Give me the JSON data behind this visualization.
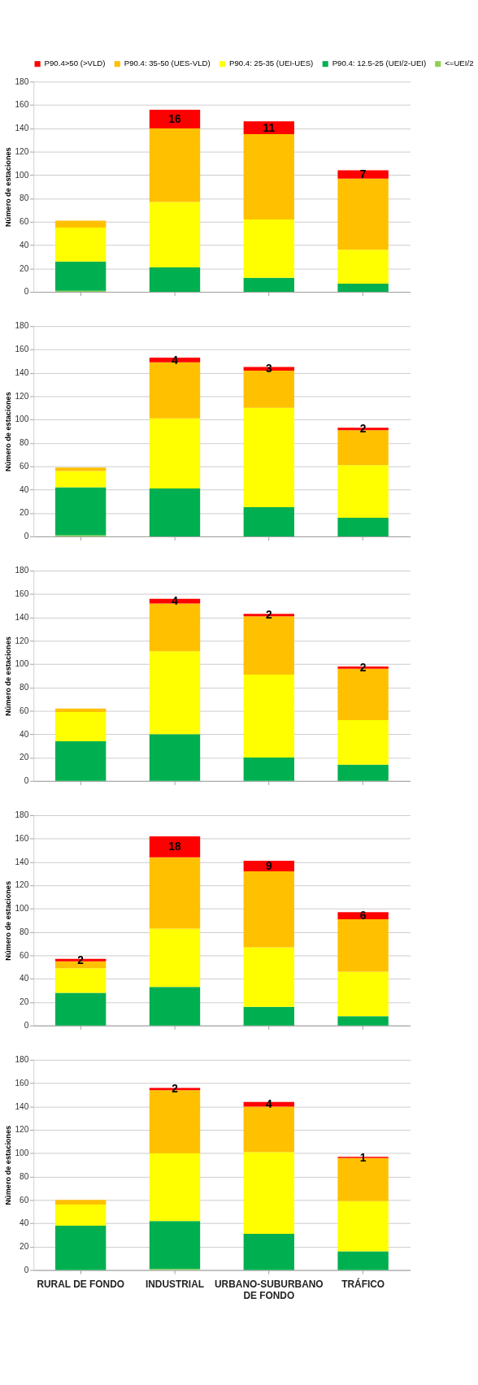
{
  "chart_data": [
    {
      "type": "bar",
      "stacked": true,
      "legend": "top",
      "tick_labels": "y",
      "grid": "y",
      "ylabel": "Número de estaciones",
      "ylim": [
        0,
        180
      ],
      "yticks": [
        0,
        20,
        40,
        60,
        80,
        100,
        120,
        140,
        160,
        180
      ],
      "categories": [
        "RURAL DE FONDO",
        "INDUSTRIAL",
        "URBANO-SUBURBANO DE FONDO",
        "TRÁFICO"
      ],
      "series": [
        {
          "name": "<=UEI/2",
          "color": "#92d050",
          "values": [
            1,
            null,
            null,
            null
          ]
        },
        {
          "name": "P90.4: 12.5-25 (UEI/2-UEI)",
          "color": "#00b050",
          "values": [
            25,
            21,
            12,
            7
          ]
        },
        {
          "name": "P90.4: 25-35 (UEI-UES)",
          "color": "#ffff00",
          "values": [
            29,
            56,
            50,
            29
          ]
        },
        {
          "name": "P90.4: 35-50 (UES-VLD)",
          "color": "#ffc000",
          "values": [
            6,
            63,
            73,
            61
          ]
        },
        {
          "name": "P90.4>50 (>VLD)",
          "color": "#ff0000",
          "values": [
            null,
            16,
            11,
            7
          ],
          "value_labels": [
            null,
            "16",
            "11",
            "7"
          ]
        }
      ]
    },
    {
      "type": "bar",
      "stacked": true,
      "tick_labels": "y",
      "grid": "y",
      "ylabel": "Número de estaciones",
      "ylim": [
        0,
        180
      ],
      "yticks": [
        0,
        20,
        40,
        60,
        80,
        100,
        120,
        140,
        160,
        180
      ],
      "categories": [
        "RURAL DE FONDO",
        "INDUSTRIAL",
        "URBANO-SUBURBANO DE FONDO",
        "TRÁFICO"
      ],
      "series": [
        {
          "color": "#92d050",
          "values": [
            1,
            null,
            null,
            null
          ]
        },
        {
          "color": "#00b050",
          "values": [
            41,
            41,
            25,
            16
          ]
        },
        {
          "color": "#ffff00",
          "values": [
            14,
            60,
            85,
            45
          ]
        },
        {
          "color": "#ffc000",
          "values": [
            3,
            48,
            32,
            30
          ]
        },
        {
          "color": "#ff0000",
          "values": [
            null,
            4,
            3,
            2
          ],
          "value_labels": [
            null,
            "4",
            "3",
            "2"
          ]
        }
      ]
    },
    {
      "type": "bar",
      "stacked": true,
      "tick_labels": "y",
      "grid": "y",
      "ylabel": "Número de estaciones",
      "ylim": [
        0,
        180
      ],
      "yticks": [
        0,
        20,
        40,
        60,
        80,
        100,
        120,
        140,
        160,
        180
      ],
      "categories": [
        "RURAL DE FONDO",
        "INDUSTRIAL",
        "URBANO-SUBURBANO DE FONDO",
        "TRÁFICO"
      ],
      "series": [
        {
          "color": "#00b050",
          "values": [
            34,
            40,
            20,
            14
          ]
        },
        {
          "color": "#ffff00",
          "values": [
            25,
            71,
            71,
            38
          ]
        },
        {
          "color": "#ffc000",
          "values": [
            3,
            41,
            50,
            44
          ]
        },
        {
          "color": "#ff0000",
          "values": [
            null,
            4,
            2,
            2
          ],
          "value_labels": [
            null,
            "4",
            "2",
            "2"
          ]
        }
      ]
    },
    {
      "type": "bar",
      "stacked": true,
      "tick_labels": "y",
      "grid": "y",
      "ylabel": "Número de estaciones",
      "ylim": [
        0,
        180
      ],
      "yticks": [
        0,
        20,
        40,
        60,
        80,
        100,
        120,
        140,
        160,
        180
      ],
      "categories": [
        "RURAL DE FONDO",
        "INDUSTRIAL",
        "URBANO-SUBURBANO DE FONDO",
        "TRÁFICO"
      ],
      "series": [
        {
          "color": "#00b050",
          "values": [
            28,
            33,
            16,
            8
          ]
        },
        {
          "color": "#ffff00",
          "values": [
            21,
            50,
            51,
            38
          ]
        },
        {
          "color": "#ffc000",
          "values": [
            6,
            61,
            65,
            45
          ]
        },
        {
          "color": "#ff0000",
          "values": [
            2,
            18,
            9,
            6
          ],
          "value_labels": [
            "2",
            "18",
            "9",
            "6"
          ]
        }
      ]
    },
    {
      "type": "bar",
      "stacked": true,
      "grid": "y",
      "ylabel": "Número de estaciones",
      "ylim": [
        0,
        180
      ],
      "yticks": [
        0,
        20,
        40,
        60,
        80,
        100,
        120,
        140,
        160,
        180
      ],
      "categories": [
        "RURAL DE FONDO",
        "INDUSTRIAL",
        "URBANO-SUBURBANO DE FONDO",
        "TRÁFICO"
      ],
      "series": [
        {
          "color": "#92d050",
          "values": [
            null,
            1,
            null,
            null
          ]
        },
        {
          "color": "#00b050",
          "values": [
            38,
            41,
            31,
            16
          ]
        },
        {
          "color": "#ffff00",
          "values": [
            18,
            58,
            70,
            43
          ]
        },
        {
          "color": "#ffc000",
          "values": [
            4,
            54,
            39,
            37
          ]
        },
        {
          "color": "#ff0000",
          "values": [
            null,
            2,
            4,
            1
          ],
          "value_labels": [
            null,
            "2",
            "4",
            "1"
          ]
        }
      ]
    }
  ]
}
